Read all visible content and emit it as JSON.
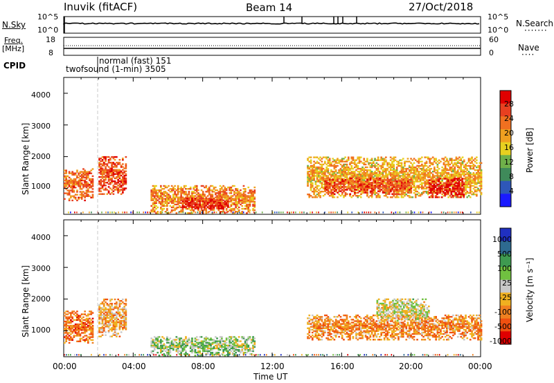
{
  "header": {
    "station": "Inuvik (fitACF)",
    "beam": "Beam 14",
    "date": "27/Oct/2018"
  },
  "sky_panel": {
    "left_label": "N.Sky",
    "right_label": "N.Search",
    "left_ticks": [
      "10^5",
      "10^0"
    ],
    "right_ticks": [
      "10^5",
      "10^0"
    ],
    "legend_style": "dotted"
  },
  "freq_panel": {
    "left_label_1": "Freq.",
    "left_label_2": "[MHz]",
    "right_label": "Nave",
    "left_ticks": [
      "18",
      "8"
    ],
    "right_ticks": [
      "60",
      "0"
    ]
  },
  "cpid": {
    "label": "CPID",
    "mode1": "normal (fast) 151",
    "mode2": "twofsound (1-min) 3505"
  },
  "x_axis": {
    "title": "Time UT",
    "tick_labels": [
      "00:00",
      "04:00",
      "08:00",
      "12:00",
      "16:00",
      "20:00",
      "00:00"
    ]
  },
  "power_panel": {
    "ylabel": "Slant Range [km]",
    "ytick_labels": [
      "1000",
      "2000",
      "3000",
      "4000"
    ],
    "colorbar_title": "Power [dB]",
    "colorbar_labels": [
      "4",
      "8",
      "12",
      "16",
      "20",
      "24",
      "28"
    ],
    "colors": [
      "#1a1aff",
      "#2e57b8",
      "#3f8a5a",
      "#6fb04a",
      "#e8d020",
      "#f0a020",
      "#f07020",
      "#e84020",
      "#e00000"
    ]
  },
  "velocity_panel": {
    "ylabel": "Slant Range [km]",
    "ytick_labels": [
      "1000",
      "2000",
      "3000",
      "4000"
    ],
    "colorbar_title": "Velocity [m s⁻¹]",
    "colorbar_labels": [
      "1000",
      "500",
      "100",
      "25",
      "-25",
      "-100",
      "-500",
      "-1000"
    ],
    "colors": [
      "#2030c0",
      "#2e6a90",
      "#3e9a50",
      "#70c040",
      "#c8c8c8",
      "#f0b020",
      "#f08020",
      "#f05010",
      "#e00000"
    ]
  },
  "chart_data": [
    {
      "type": "heatmap",
      "title": "Power [dB]",
      "xlabel": "Time UT",
      "ylabel": "Slant Range [km]",
      "xlim": [
        "00:00",
        "24:00"
      ],
      "ylim": [
        180,
        4500
      ],
      "colorbar_range": [
        0,
        30
      ],
      "echo_regions": [
        {
          "t_start": 0.0,
          "t_end": 1.7,
          "r_min": 600,
          "r_max": 1600,
          "typical_db": 22
        },
        {
          "t_start": 2.0,
          "t_end": 3.6,
          "r_min": 800,
          "r_max": 2000,
          "typical_db": 24
        },
        {
          "t_start": 5.0,
          "t_end": 11.0,
          "r_min": 200,
          "r_max": 1100,
          "typical_db": 20
        },
        {
          "t_start": 6.8,
          "t_end": 9.5,
          "r_min": 300,
          "r_max": 700,
          "typical_db": 26
        },
        {
          "t_start": 14.0,
          "t_end": 24.0,
          "r_min": 700,
          "r_max": 2000,
          "typical_db": 18
        },
        {
          "t_start": 15.0,
          "t_end": 20.0,
          "r_min": 800,
          "r_max": 1300,
          "typical_db": 24
        },
        {
          "t_start": 21.0,
          "t_end": 23.0,
          "r_min": 700,
          "r_max": 1300,
          "typical_db": 28
        }
      ]
    },
    {
      "type": "heatmap",
      "title": "Velocity [m s⁻¹]",
      "xlabel": "Time UT",
      "ylabel": "Slant Range [km]",
      "xlim": [
        "00:00",
        "24:00"
      ],
      "ylim": [
        180,
        4500
      ],
      "colorbar_range": [
        -1000,
        1000
      ],
      "echo_regions": [
        {
          "t_start": 0.0,
          "t_end": 1.7,
          "r_min": 600,
          "r_max": 1600,
          "typical_vel": -500
        },
        {
          "t_start": 2.0,
          "t_end": 3.6,
          "r_min": 800,
          "r_max": 2000,
          "typical_vel": -300
        },
        {
          "t_start": 5.0,
          "t_end": 11.0,
          "r_min": 200,
          "r_max": 800,
          "typical_vel": 150
        },
        {
          "t_start": 14.0,
          "t_end": 24.0,
          "r_min": 700,
          "r_max": 1500,
          "typical_vel": -400
        },
        {
          "t_start": 18.0,
          "t_end": 21.0,
          "r_min": 1300,
          "r_max": 2000,
          "typical_vel": 0
        }
      ]
    }
  ]
}
